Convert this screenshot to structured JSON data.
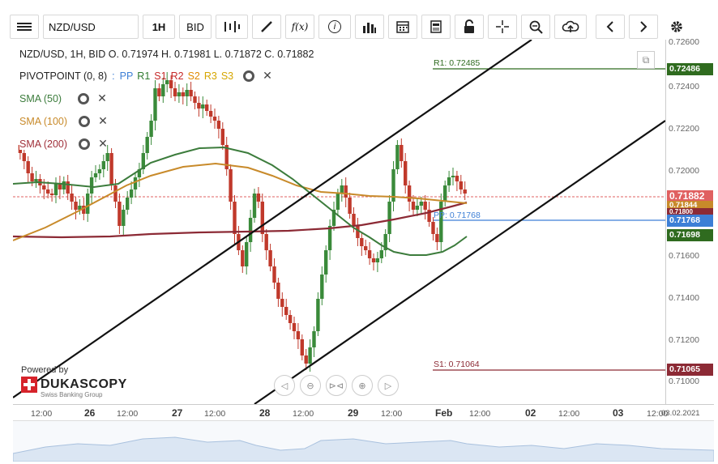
{
  "toolbar": {
    "symbol": "NZD/USD",
    "timeframe": "1H",
    "side": "BID",
    "fx_label": "f(x)",
    "info_label": "i"
  },
  "legend": {
    "ohlc": "NZD/USD, 1H, BID    O. 0.71974  H. 0.71981  L. 0.71872  C. 0.71882",
    "pivot_name": "PIVOTPOINT (0, 8)",
    "pivot_items": [
      {
        "label": "PP",
        "color": "#3d7fd6"
      },
      {
        "label": "R1",
        "color": "#2f7a2f"
      },
      {
        "label": "S1",
        "color": "#c62828"
      },
      {
        "label": "R2",
        "color": "#c62828"
      },
      {
        "label": "S2",
        "color": "#e08a00"
      },
      {
        "label": "R3",
        "color": "#d6a600"
      },
      {
        "label": "S3",
        "color": "#d6a600"
      }
    ],
    "sma50": "SMA (50)",
    "sma100": "SMA (100)",
    "sma200": "SMA (200)"
  },
  "price_axis": {
    "ticks": [
      "0.72600",
      "0.72400",
      "0.72200",
      "0.72000",
      "0.71600",
      "0.71400",
      "0.71200",
      "0.71000"
    ],
    "tags": [
      {
        "text": "0.72486",
        "color": "#2f6b1f"
      },
      {
        "text": "0.71882",
        "color": "#e06060"
      },
      {
        "text": "0.71844",
        "color": "#c88a2a"
      },
      {
        "text": "0.71800",
        "color": "#8c2a35"
      },
      {
        "text": "0.71768",
        "color": "#3d7fd6"
      },
      {
        "text": "0.71698",
        "color": "#2f6b1f"
      },
      {
        "text": "0.71065",
        "color": "#8c2a35"
      }
    ]
  },
  "pivot_levels": {
    "r1": "R1: 0.72485",
    "pp": "PP: 0.71768",
    "s1": "S1: 0.71064"
  },
  "time_axis": {
    "labels": [
      "12:00",
      "26",
      "12:00",
      "27",
      "12:00",
      "28",
      "12:00",
      "29",
      "12:00",
      "Feb",
      "12:00",
      "02",
      "12:00",
      "03",
      "12:00",
      "03.02.2021"
    ]
  },
  "branding": {
    "powered": "Powered by",
    "name": "DUKASCOPY",
    "sub": "Swiss Banking Group"
  },
  "colors": {
    "sma50": "#3c7c3c",
    "sma100": "#c88a2a",
    "sma200": "#8c2a35",
    "bull": "#3a8a3a",
    "bear": "#c0392b"
  }
}
